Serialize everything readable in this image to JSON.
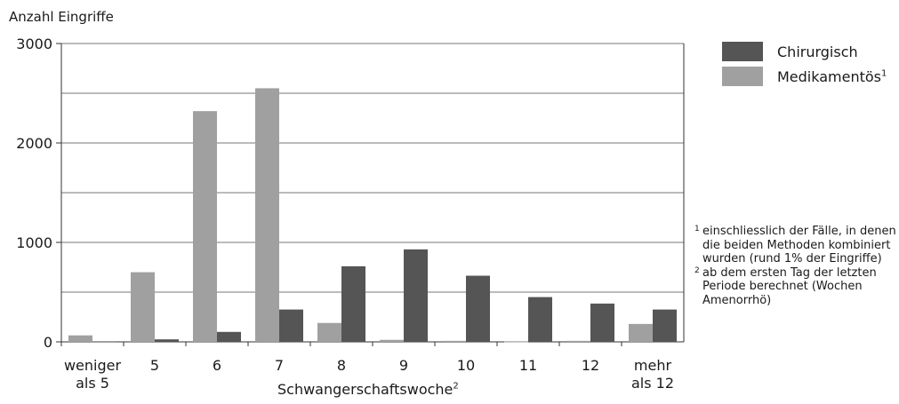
{
  "chart_data": {
    "type": "bar",
    "title": "",
    "ylabel": "Anzahl Eingriffe",
    "xlabel": "Schwangerschaftswoche",
    "xlabel_sup": "2",
    "ylim": [
      0,
      3000
    ],
    "yticks": [
      "0",
      "1000",
      "2000",
      "3000"
    ],
    "grid": true,
    "legend_position": "top-right",
    "categories": [
      [
        "weniger",
        "als 5"
      ],
      [
        "5"
      ],
      [
        "6"
      ],
      [
        "7"
      ],
      [
        "8"
      ],
      [
        "9"
      ],
      [
        "10"
      ],
      [
        "11"
      ],
      [
        "12"
      ],
      [
        "mehr",
        "als 12"
      ]
    ],
    "series": [
      {
        "name": "Medikamentös",
        "sup": "1",
        "color": "#a0a0a0",
        "values": [
          65,
          700,
          2320,
          2550,
          190,
          20,
          10,
          3,
          10,
          180
        ]
      },
      {
        "name": "Chirurgisch",
        "sup": "",
        "color": "#555555",
        "values": [
          5,
          25,
          100,
          325,
          760,
          930,
          665,
          450,
          385,
          325
        ]
      }
    ],
    "legend_order": [
      1,
      0
    ],
    "footnotes": [
      {
        "mark": "1",
        "text": "einschliesslich der Fälle, in denen die beiden Methoden kombiniert wurden (rund 1% der Eingriffe)"
      },
      {
        "mark": "2",
        "text": "ab dem ersten Tag der letzten Periode berechnet (Wochen Amenorrhö)"
      }
    ]
  }
}
